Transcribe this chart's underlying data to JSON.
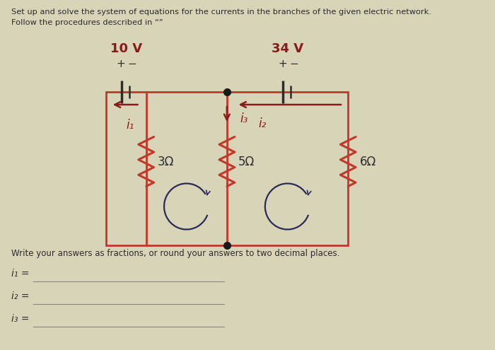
{
  "title_line1": "Set up and solve the system of equations for the currents in the branches of the given electric network.",
  "title_line2": "Follow the procedures described in “”",
  "bg_color": "#d8d4b8",
  "circuit_color": "#c0392b",
  "text_color": "#2c2c2c",
  "label_color": "#8b1a1a",
  "loop_color": "#2a2a5a",
  "voltage1": "10 V",
  "voltage2": "34 V",
  "resistor1": "3Ω",
  "resistor2": "5Ω",
  "resistor3": "6Ω",
  "current1": "i₁",
  "current2": "i₂",
  "current3": "i₃",
  "answer_line1": "Write your answers as fractions, or round your answers to two decimal places.",
  "answer_label1": "i₁ =",
  "answer_label2": "i₂ =",
  "answer_label3": "i₃ ="
}
